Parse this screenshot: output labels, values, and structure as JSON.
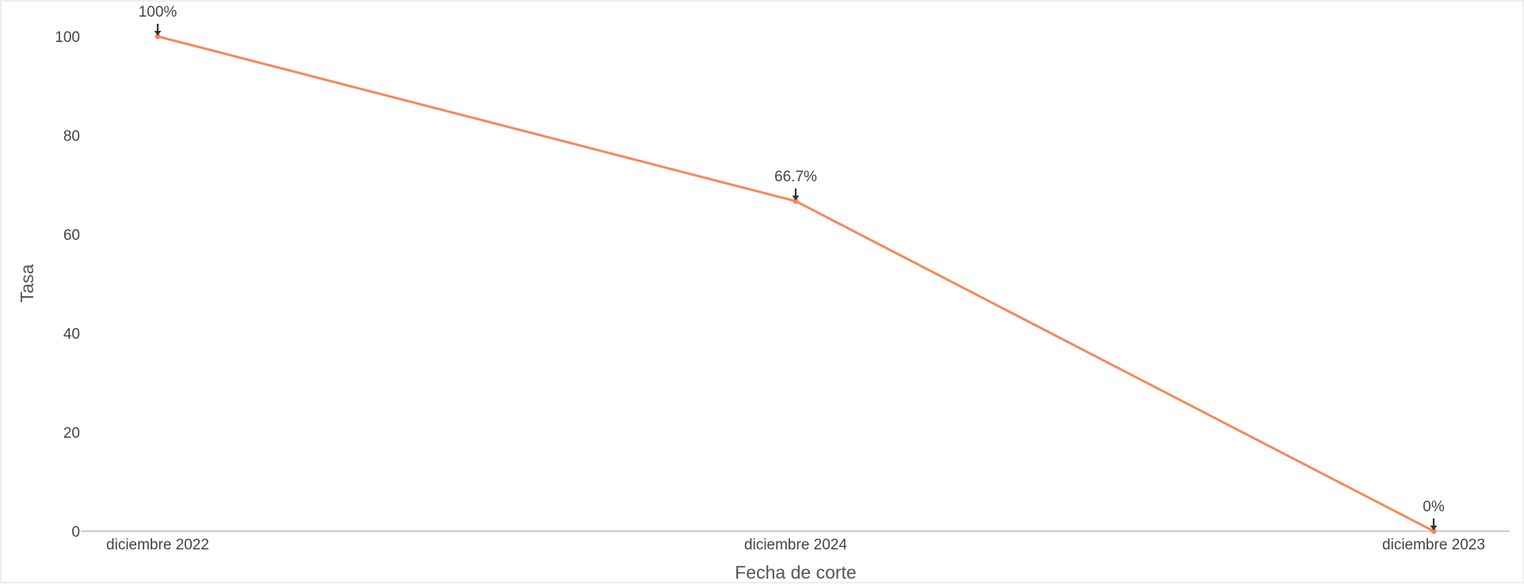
{
  "chart_data": {
    "type": "line",
    "title": "",
    "xlabel": "Fecha de corte",
    "ylabel": "Tasa",
    "categories": [
      "diciembre 2022",
      "diciembre 2024",
      "diciembre 2023"
    ],
    "series": [
      {
        "values": [
          100,
          66.7,
          0
        ],
        "data_labels": [
          "100%",
          "66.7%",
          "0%"
        ],
        "color": "#f4895f"
      }
    ],
    "ylim": [
      0,
      100
    ],
    "y_ticks": [
      0,
      20,
      40,
      60,
      80,
      100
    ],
    "grid": false,
    "legend": "none",
    "annotation_marker": "down-arrow",
    "annotation_color": "#333333",
    "axis_line_color": "#bbbbbb"
  }
}
